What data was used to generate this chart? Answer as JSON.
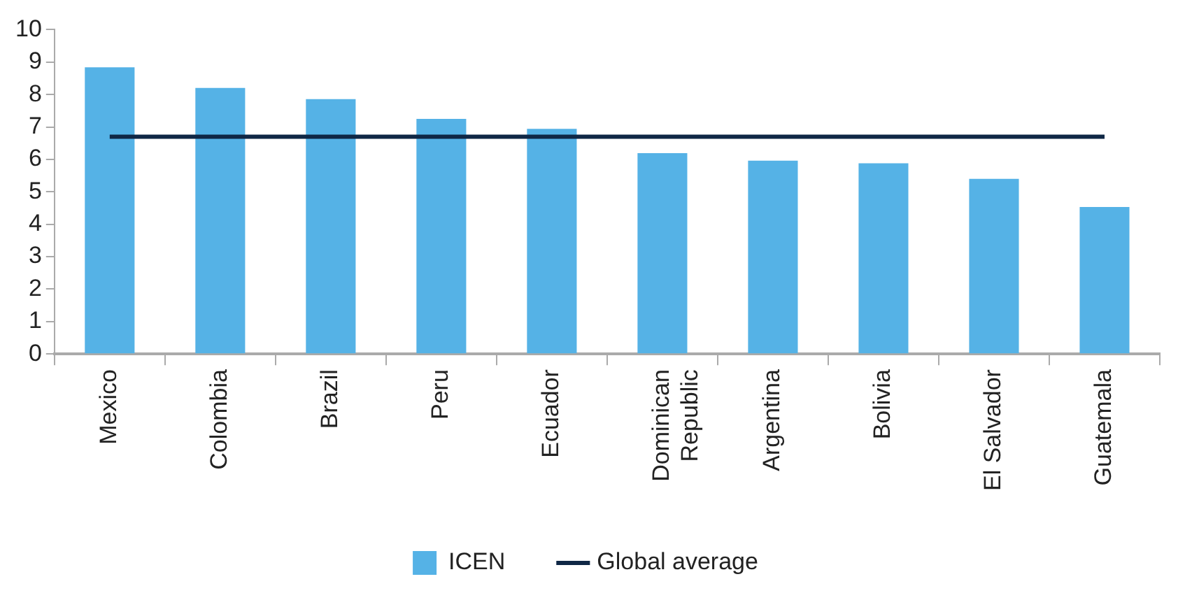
{
  "chart_data": {
    "type": "bar",
    "categories": [
      "Mexico",
      "Colombia",
      "Brazil",
      "Peru",
      "Ecuador",
      "Dominican Republic",
      "Argentina",
      "Bolivia",
      "El Salvador",
      "Guatemala"
    ],
    "series": [
      {
        "name": "ICEN",
        "color": "#55b2e6",
        "values": [
          8.84,
          8.2,
          7.86,
          7.25,
          6.94,
          6.19,
          5.96,
          5.88,
          5.4,
          4.53
        ]
      },
      {
        "name": "Global average",
        "type": "line",
        "color": "#0f2745",
        "values": [
          6.7,
          6.7,
          6.7,
          6.7,
          6.7,
          6.7,
          6.7,
          6.7,
          6.7,
          6.7
        ]
      }
    ],
    "ylim": [
      0,
      10
    ],
    "yticks": [
      0,
      1,
      2,
      3,
      4,
      5,
      6,
      7,
      8,
      9,
      10
    ],
    "grid": false,
    "legend": "bottom",
    "marker": "none"
  }
}
